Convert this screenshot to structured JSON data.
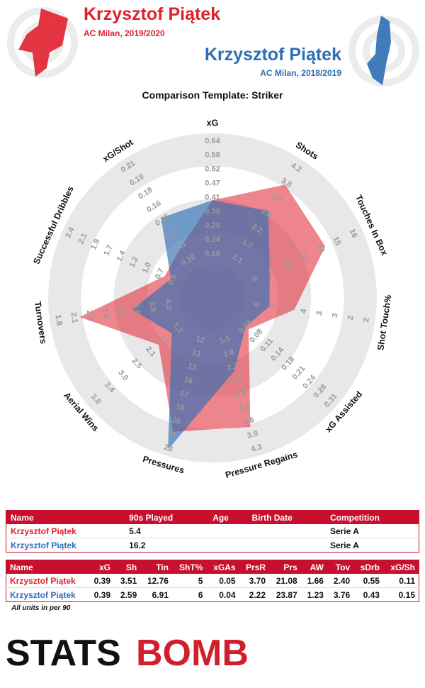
{
  "header": {
    "player1": {
      "name": "Krzysztof Piątek",
      "team_season": "AC Milan, 2019/2020",
      "color": "#e0202d",
      "icon": "radar-badge-icon"
    },
    "player2": {
      "name": "Krzysztof Piątek",
      "team_season": "AC Milan, 2018/2019",
      "color": "#2e6eb5",
      "icon": "radar-badge-icon"
    }
  },
  "template_title": "Comparison Template: Striker",
  "chart_data": {
    "type": "radar",
    "axes": [
      {
        "label": "xG",
        "ticks": [
          "0.18",
          "0.24",
          "0.29",
          "0.35",
          "0.41",
          "0.47",
          "0.52",
          "0.58",
          "0.64"
        ],
        "min": 0.12,
        "max": 0.64
      },
      {
        "label": "Shots",
        "ticks": [
          "1.1",
          "1.7",
          "2.2",
          "2.8",
          "3.2",
          "3.8",
          "4.2"
        ],
        "min": 0.5,
        "max": 4.2
      },
      {
        "label": "Touches In Box",
        "ticks": [
          "6",
          "8",
          "10",
          "11",
          "13",
          "15",
          "16"
        ],
        "min": 4,
        "max": 16
      },
      {
        "label": "Shot Touch%",
        "ticks": [
          "6",
          "5",
          "5",
          "4",
          "3",
          "3",
          "2",
          "2"
        ],
        "min": 7,
        "max": 2
      },
      {
        "label": "xG Assisted",
        "ticks": [
          "0.04",
          "0.08",
          "0.11",
          "0.14",
          "0.18",
          "0.21",
          "0.24",
          "0.28",
          "0.31"
        ],
        "min": 0.01,
        "max": 0.34
      },
      {
        "label": "Pressure Regains",
        "ticks": [
          "1.5",
          "1.8",
          "2.2",
          "2.5",
          "2.9",
          "3.2",
          "3.6",
          "3.9",
          "4.3"
        ],
        "min": 1.1,
        "max": 4.3
      },
      {
        "label": "Pressures",
        "ticks": [
          "12",
          "13",
          "15",
          "16",
          "17",
          "19",
          "20",
          "21",
          "23"
        ],
        "min": 10,
        "max": 23
      },
      {
        "label": "Aerial Wins",
        "ticks": [
          "1.3",
          "1.7",
          "2.1",
          "2.5",
          "3.0",
          "3.4",
          "3.8"
        ],
        "min": 0.7,
        "max": 3.8
      },
      {
        "label": "Turnovers",
        "ticks": [
          "4.3",
          "3.9",
          "3.6",
          "3.2",
          "2.8",
          "2.5",
          "2.1",
          "1.8"
        ],
        "min": 5.0,
        "max": 1.8
      },
      {
        "label": "Successful Dribbles",
        "ticks": [
          "0.5",
          "0.7",
          "1.0",
          "1.2",
          "1.4",
          "1.7",
          "1.9",
          "2.1",
          "2.4"
        ],
        "min": 0.2,
        "max": 2.4
      },
      {
        "label": "xG/Shot",
        "ticks": [
          "0.10",
          "0.11",
          "0.13",
          "0.15",
          "0.16",
          "0.18",
          "0.19",
          "0.21"
        ],
        "min": 0.08,
        "max": 0.22
      }
    ],
    "series": [
      {
        "name": "Krzysztof Piątek",
        "color": "#e0202d",
        "values": [
          0.39,
          3.51,
          12.76,
          5,
          0.05,
          3.7,
          21.08,
          1.66,
          2.4,
          0.55,
          0.11
        ]
      },
      {
        "name": "Krzysztof Piątek",
        "color": "#2e6eb5",
        "values": [
          0.39,
          2.59,
          6.91,
          6,
          0.04,
          2.22,
          23.87,
          1.23,
          3.76,
          0.43,
          0.15
        ]
      }
    ]
  },
  "info_table": {
    "headers": [
      "Name",
      "90s Played",
      "Age",
      "Birth Date",
      "Competition"
    ],
    "rows": [
      [
        "Krzysztof Piątek",
        "5.4",
        "",
        "",
        "Serie A"
      ],
      [
        "Krzysztof Piątek",
        "16.2",
        "",
        "",
        "Serie A"
      ]
    ]
  },
  "stats_table": {
    "headers": [
      "Name",
      "xG",
      "Sh",
      "Tin",
      "ShT%",
      "xGAs",
      "PrsR",
      "Prs",
      "AW",
      "Tov",
      "sDrb",
      "xG/Sh"
    ],
    "rows": [
      [
        "Krzysztof Piątek",
        "0.39",
        "3.51",
        "12.76",
        "5",
        "0.05",
        "3.70",
        "21.08",
        "1.66",
        "2.40",
        "0.55",
        "0.11"
      ],
      [
        "Krzysztof Piątek",
        "0.39",
        "2.59",
        "6.91",
        "6",
        "0.04",
        "2.22",
        "23.87",
        "1.23",
        "3.76",
        "0.43",
        "0.15"
      ]
    ]
  },
  "footnote": "All units in per 90",
  "logo": {
    "part1": "STATS",
    "part2": "BOMB"
  }
}
